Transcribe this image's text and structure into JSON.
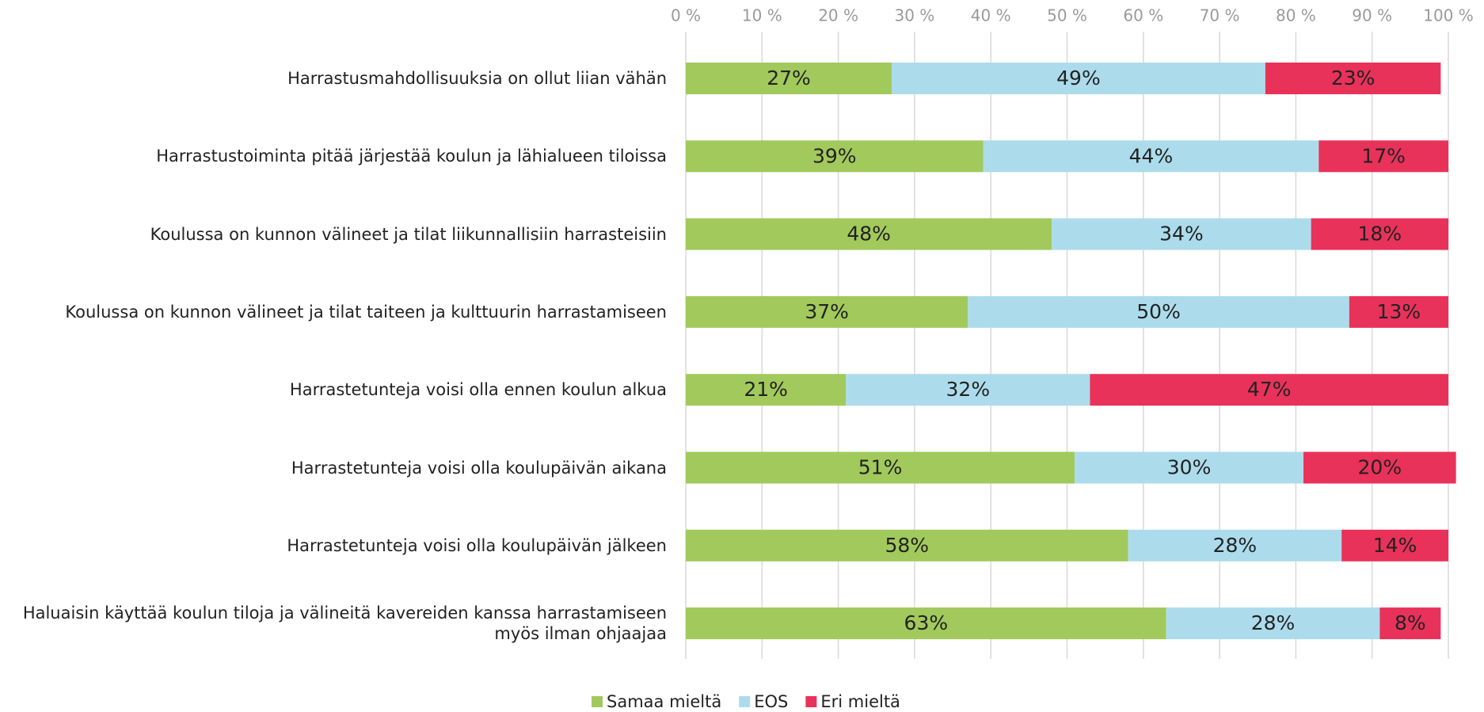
{
  "chart_data": {
    "type": "stacked-barh",
    "categories": [
      "Harrastusmahdollisuuksia on ollut liian vähän",
      "Harrastustoiminta pitää järjestää koulun ja lähialueen tiloissa",
      "Koulussa on kunnon välineet ja tilat liikunnallisiin harrasteisiin",
      "Koulussa on kunnon välineet ja tilat taiteen ja kulttuurin harrastamiseen",
      "Harrastetunteja voisi olla ennen koulun alkua",
      "Harrastetunteja voisi olla koulupäivän aikana",
      "Harrastetunteja voisi olla koulupäivän jälkeen",
      "Haluaisin käyttää koulun tiloja ja välineitä kavereiden kanssa harrastamiseen myös ilman ohjaajaa"
    ],
    "series": [
      {
        "name": "Samaa mieltä",
        "color": "#a2c95c",
        "values": [
          27,
          39,
          48,
          37,
          21,
          51,
          58,
          63
        ],
        "value_labels": [
          "27%",
          "39%",
          "48%",
          "37%",
          "21%",
          "51%",
          "58%",
          "63%"
        ]
      },
      {
        "name": "EOS",
        "color": "#acdcec",
        "values": [
          49,
          44,
          34,
          50,
          32,
          30,
          28,
          28
        ],
        "value_labels": [
          "49%",
          "44%",
          "34%",
          "50%",
          "32%",
          "30%",
          "28%",
          "28%"
        ]
      },
      {
        "name": "Eri mieltä",
        "color": "#e8325a",
        "values": [
          23,
          17,
          18,
          13,
          47,
          20,
          14,
          8
        ],
        "value_labels": [
          "23%",
          "17%",
          "18%",
          "13%",
          "47%",
          "20%",
          "14%",
          "8%"
        ]
      }
    ],
    "xlim": [
      0,
      100
    ],
    "xticks": [
      {
        "value": 0,
        "label": "0 %"
      },
      {
        "value": 10,
        "label": "10 %"
      },
      {
        "value": 20,
        "label": "20 %"
      },
      {
        "value": 30,
        "label": "30 %"
      },
      {
        "value": 40,
        "label": "40 %"
      },
      {
        "value": 50,
        "label": "50 %"
      },
      {
        "value": 60,
        "label": "60 %"
      },
      {
        "value": 70,
        "label": "70 %"
      },
      {
        "value": 80,
        "label": "80 %"
      },
      {
        "value": 90,
        "label": "90 %"
      },
      {
        "value": 100,
        "label": "100 %"
      }
    ],
    "grid": true,
    "legend": "bottom"
  }
}
